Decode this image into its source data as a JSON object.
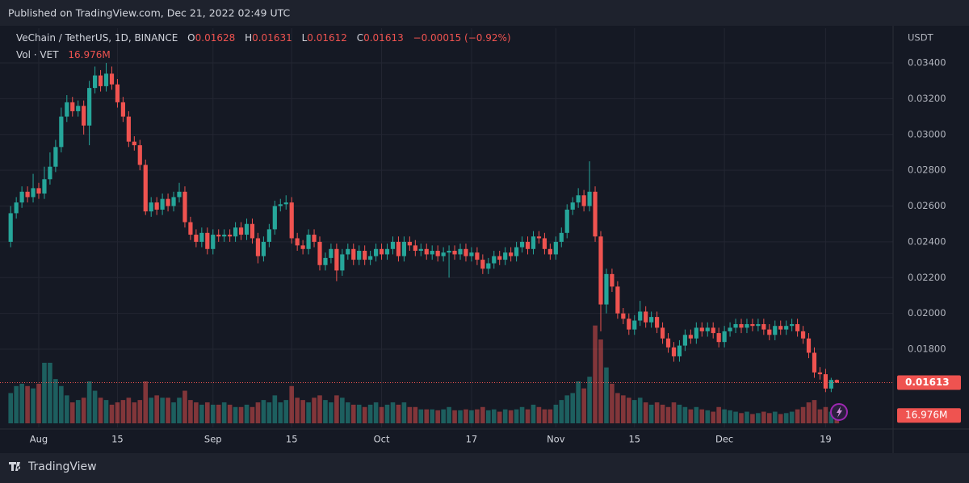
{
  "published": "Published on TradingView.com, Dec 21, 2022 02:49 UTC",
  "footer_brand": "TradingView",
  "chart_data": {
    "type": "candlestick",
    "symbol": "VeChain / TetherUS, 1D, BINANCE",
    "ohlc_keys": [
      "O",
      "H",
      "L",
      "C"
    ],
    "change_label": "−0.00015 (−0.92%)",
    "volume_title": "Vol · VET",
    "y_unit": "USDT",
    "up_color": "#26a69a",
    "down_color": "#ef5350",
    "grid": true,
    "ylim": [
      0.01363,
      0.03594
    ],
    "yticks": [
      {
        "value": 0.018,
        "label": "0.01800"
      },
      {
        "value": 0.02,
        "label": "0.02000"
      },
      {
        "value": 0.022,
        "label": "0.02200"
      },
      {
        "value": 0.024,
        "label": "0.02400"
      },
      {
        "value": 0.026,
        "label": "0.02600"
      },
      {
        "value": 0.028,
        "label": "0.02800"
      },
      {
        "value": 0.03,
        "label": "0.03000"
      },
      {
        "value": 0.032,
        "label": "0.03200"
      },
      {
        "value": 0.034,
        "label": "0.03400"
      }
    ],
    "volume_lim": [
      0,
      225
    ],
    "categories": [
      null,
      null,
      null,
      null,
      null,
      "Aug",
      null,
      null,
      null,
      null,
      null,
      null,
      null,
      null,
      null,
      null,
      null,
      null,
      null,
      "15",
      null,
      null,
      null,
      null,
      null,
      null,
      null,
      null,
      null,
      null,
      null,
      null,
      null,
      null,
      null,
      null,
      "Sep",
      null,
      null,
      null,
      null,
      null,
      null,
      null,
      null,
      null,
      null,
      null,
      null,
      null,
      "15",
      null,
      null,
      null,
      null,
      null,
      null,
      null,
      null,
      null,
      null,
      null,
      null,
      null,
      null,
      null,
      "Oct",
      null,
      null,
      null,
      null,
      null,
      null,
      null,
      null,
      null,
      null,
      null,
      null,
      null,
      null,
      null,
      "17",
      null,
      null,
      null,
      null,
      null,
      null,
      null,
      null,
      null,
      null,
      null,
      null,
      null,
      null,
      "Nov",
      null,
      null,
      null,
      null,
      null,
      null,
      null,
      null,
      null,
      null,
      null,
      null,
      null,
      "15",
      null,
      null,
      null,
      null,
      null,
      null,
      null,
      null,
      null,
      null,
      null,
      null,
      null,
      null,
      null,
      "Dec",
      null,
      null,
      null,
      null,
      null,
      null,
      null,
      null,
      null,
      null,
      null,
      null,
      null,
      null,
      null,
      null,
      null,
      "19",
      null,
      null
    ],
    "open": [
      0.024,
      0.0256,
      0.0262,
      0.0268,
      0.0265,
      0.027,
      0.0267,
      0.0275,
      0.0282,
      0.0293,
      0.031,
      0.0318,
      0.0313,
      0.0316,
      0.0305,
      0.0326,
      0.0333,
      0.0327,
      0.0334,
      0.0328,
      0.0318,
      0.031,
      0.0296,
      0.0294,
      0.0283,
      0.0257,
      0.0262,
      0.0258,
      0.0264,
      0.026,
      0.0265,
      0.0268,
      0.0251,
      0.0244,
      0.024,
      0.0245,
      0.0236,
      0.0244,
      0.0243,
      0.0244,
      0.0243,
      0.0248,
      0.0244,
      0.025,
      0.0242,
      0.0232,
      0.024,
      0.0247,
      0.026,
      0.0261,
      0.0262,
      0.0242,
      0.0238,
      0.0236,
      0.0244,
      0.024,
      0.0227,
      0.0231,
      0.0236,
      0.0224,
      0.0233,
      0.0236,
      0.023,
      0.0235,
      0.023,
      0.0232,
      0.0236,
      0.0233,
      0.0236,
      0.024,
      0.0232,
      0.024,
      0.0238,
      0.0235,
      0.0236,
      0.0233,
      0.0235,
      0.0232,
      0.0234,
      0.0235,
      0.0233,
      0.0236,
      0.0232,
      0.0234,
      0.023,
      0.0225,
      0.0228,
      0.0232,
      0.023,
      0.0234,
      0.0232,
      0.0237,
      0.024,
      0.0236,
      0.0243,
      0.0242,
      0.0236,
      0.0233,
      0.024,
      0.0245,
      0.0258,
      0.0262,
      0.0266,
      0.026,
      0.0268,
      0.0243,
      0.0205,
      0.0222,
      0.0215,
      0.02,
      0.0197,
      0.0191,
      0.0196,
      0.0201,
      0.0195,
      0.0198,
      0.0192,
      0.0186,
      0.0181,
      0.0176,
      0.0182,
      0.0188,
      0.0186,
      0.0192,
      0.019,
      0.0192,
      0.0189,
      0.0184,
      0.019,
      0.0192,
      0.0194,
      0.0192,
      0.0194,
      0.0193,
      0.0194,
      0.0191,
      0.0188,
      0.0193,
      0.0191,
      0.0193,
      0.0194,
      0.019,
      0.0186,
      0.0178,
      0.0167,
      0.0166,
      0.0158,
      0.01628
    ],
    "high": [
      0.026,
      0.0265,
      0.0271,
      0.0271,
      0.0278,
      0.0273,
      0.0282,
      0.029,
      0.0297,
      0.0315,
      0.0322,
      0.0321,
      0.0319,
      0.0319,
      0.033,
      0.0338,
      0.0336,
      0.034,
      0.0338,
      0.0331,
      0.0321,
      0.0313,
      0.0299,
      0.0297,
      0.0286,
      0.0265,
      0.0265,
      0.0267,
      0.0267,
      0.0268,
      0.0273,
      0.0271,
      0.0254,
      0.0247,
      0.0248,
      0.0248,
      0.0247,
      0.0247,
      0.0247,
      0.0247,
      0.0251,
      0.0251,
      0.0253,
      0.0253,
      0.0245,
      0.0243,
      0.025,
      0.0263,
      0.0264,
      0.0266,
      0.0265,
      0.0245,
      0.0241,
      0.0247,
      0.0247,
      0.0243,
      0.0234,
      0.0239,
      0.0239,
      0.0236,
      0.0239,
      0.0239,
      0.0238,
      0.0238,
      0.0235,
      0.0239,
      0.0239,
      0.0239,
      0.0243,
      0.0243,
      0.0243,
      0.0243,
      0.0241,
      0.0239,
      0.0239,
      0.0238,
      0.0238,
      0.0237,
      0.0238,
      0.0238,
      0.0239,
      0.0239,
      0.0237,
      0.0237,
      0.0233,
      0.0231,
      0.0235,
      0.0235,
      0.0237,
      0.0237,
      0.024,
      0.0243,
      0.0243,
      0.0246,
      0.0246,
      0.0245,
      0.0239,
      0.0243,
      0.0248,
      0.0261,
      0.0265,
      0.027,
      0.0269,
      0.0285,
      0.0271,
      0.0246,
      0.0225,
      0.0225,
      0.0218,
      0.0203,
      0.02,
      0.0199,
      0.0207,
      0.0204,
      0.0201,
      0.0201,
      0.0195,
      0.0189,
      0.0184,
      0.0185,
      0.0191,
      0.0191,
      0.0195,
      0.0195,
      0.0195,
      0.0195,
      0.0192,
      0.0193,
      0.0195,
      0.0197,
      0.0197,
      0.0197,
      0.0197,
      0.0197,
      0.0197,
      0.0194,
      0.0196,
      0.0196,
      0.0196,
      0.0197,
      0.0197,
      0.0193,
      0.0189,
      0.0181,
      0.017,
      0.0169,
      0.0164,
      0.01631
    ],
    "low": [
      0.0237,
      0.0253,
      0.0259,
      0.0262,
      0.0262,
      0.0264,
      0.0264,
      0.0272,
      0.0279,
      0.029,
      0.0307,
      0.031,
      0.031,
      0.03,
      0.0294,
      0.0323,
      0.0324,
      0.0324,
      0.0325,
      0.0315,
      0.0307,
      0.0293,
      0.0291,
      0.028,
      0.0255,
      0.0254,
      0.0255,
      0.0255,
      0.0257,
      0.0257,
      0.0262,
      0.0248,
      0.0241,
      0.0237,
      0.0237,
      0.0233,
      0.0233,
      0.024,
      0.024,
      0.024,
      0.024,
      0.0241,
      0.0241,
      0.0239,
      0.0228,
      0.0229,
      0.0237,
      0.0244,
      0.0257,
      0.0258,
      0.0239,
      0.0235,
      0.0233,
      0.0233,
      0.0237,
      0.0224,
      0.0224,
      0.0228,
      0.0218,
      0.0221,
      0.023,
      0.0227,
      0.0227,
      0.0227,
      0.0227,
      0.0229,
      0.023,
      0.023,
      0.0233,
      0.0229,
      0.0229,
      0.0235,
      0.0232,
      0.0232,
      0.023,
      0.023,
      0.0229,
      0.0229,
      0.022,
      0.023,
      0.023,
      0.0229,
      0.0229,
      0.0227,
      0.0222,
      0.0222,
      0.0225,
      0.0227,
      0.0227,
      0.0229,
      0.0229,
      0.0234,
      0.0233,
      0.0233,
      0.0239,
      0.0233,
      0.023,
      0.023,
      0.0237,
      0.0242,
      0.0255,
      0.0259,
      0.0257,
      0.0257,
      0.024,
      0.019,
      0.02,
      0.0212,
      0.0197,
      0.0194,
      0.0188,
      0.0188,
      0.0193,
      0.0192,
      0.0192,
      0.0189,
      0.0183,
      0.0178,
      0.0173,
      0.0173,
      0.0179,
      0.0183,
      0.0183,
      0.0187,
      0.0187,
      0.0186,
      0.0181,
      0.0181,
      0.0187,
      0.0189,
      0.0189,
      0.0189,
      0.019,
      0.019,
      0.0188,
      0.0185,
      0.0185,
      0.0188,
      0.0188,
      0.019,
      0.0187,
      0.0183,
      0.0175,
      0.0164,
      0.0163,
      0.0156,
      0.0156,
      0.01612
    ],
    "close": [
      0.0256,
      0.0262,
      0.0268,
      0.0265,
      0.027,
      0.0267,
      0.0275,
      0.0282,
      0.0293,
      0.031,
      0.0318,
      0.0313,
      0.0316,
      0.0305,
      0.0326,
      0.0333,
      0.0327,
      0.0334,
      0.0328,
      0.0318,
      0.031,
      0.0296,
      0.0294,
      0.0283,
      0.0257,
      0.0262,
      0.0258,
      0.0264,
      0.026,
      0.0265,
      0.0268,
      0.0251,
      0.0244,
      0.024,
      0.0245,
      0.0236,
      0.0244,
      0.0243,
      0.0244,
      0.0243,
      0.0248,
      0.0244,
      0.025,
      0.0242,
      0.0232,
      0.024,
      0.0247,
      0.026,
      0.0261,
      0.0262,
      0.0242,
      0.0238,
      0.0236,
      0.0244,
      0.024,
      0.0227,
      0.0231,
      0.0236,
      0.0224,
      0.0233,
      0.0236,
      0.023,
      0.0235,
      0.023,
      0.0232,
      0.0236,
      0.0233,
      0.0236,
      0.024,
      0.0232,
      0.024,
      0.0238,
      0.0235,
      0.0236,
      0.0233,
      0.0235,
      0.0232,
      0.0234,
      0.0235,
      0.0233,
      0.0236,
      0.0232,
      0.0234,
      0.023,
      0.0225,
      0.0228,
      0.0232,
      0.023,
      0.0234,
      0.0232,
      0.0237,
      0.024,
      0.0236,
      0.0243,
      0.0242,
      0.0236,
      0.0233,
      0.024,
      0.0245,
      0.0258,
      0.0262,
      0.0266,
      0.026,
      0.0268,
      0.0243,
      0.0205,
      0.0222,
      0.0215,
      0.02,
      0.0197,
      0.0191,
      0.0196,
      0.0201,
      0.0195,
      0.0198,
      0.0192,
      0.0186,
      0.0181,
      0.0176,
      0.0182,
      0.0188,
      0.0186,
      0.0192,
      0.019,
      0.0192,
      0.0189,
      0.0184,
      0.019,
      0.0192,
      0.0194,
      0.0192,
      0.0194,
      0.0193,
      0.0194,
      0.0191,
      0.0188,
      0.0193,
      0.0191,
      0.0193,
      0.0194,
      0.019,
      0.0186,
      0.0178,
      0.0167,
      0.0166,
      0.0158,
      0.01628,
      0.01613
    ],
    "volume": [
      65,
      80,
      85,
      80,
      75,
      85,
      130,
      130,
      95,
      80,
      60,
      45,
      50,
      55,
      90,
      70,
      55,
      50,
      40,
      45,
      50,
      55,
      45,
      50,
      90,
      55,
      60,
      55,
      55,
      45,
      55,
      70,
      50,
      45,
      40,
      45,
      40,
      40,
      45,
      40,
      35,
      35,
      40,
      35,
      45,
      50,
      45,
      60,
      45,
      50,
      80,
      55,
      50,
      45,
      55,
      60,
      50,
      45,
      60,
      55,
      45,
      40,
      40,
      35,
      40,
      45,
      35,
      40,
      45,
      40,
      45,
      35,
      35,
      30,
      30,
      30,
      28,
      30,
      35,
      28,
      28,
      30,
      28,
      30,
      35,
      28,
      30,
      25,
      30,
      28,
      30,
      35,
      30,
      40,
      35,
      30,
      30,
      40,
      50,
      60,
      65,
      90,
      75,
      100,
      210,
      180,
      120,
      85,
      65,
      60,
      55,
      50,
      55,
      45,
      40,
      45,
      40,
      35,
      45,
      40,
      35,
      30,
      35,
      30,
      28,
      25,
      35,
      30,
      28,
      25,
      22,
      25,
      20,
      22,
      25,
      22,
      25,
      20,
      22,
      25,
      30,
      35,
      45,
      50,
      30,
      35,
      25,
      16.976
    ],
    "volume_value_labels": [
      null,
      null,
      null,
      null,
      null,
      null,
      null,
      null,
      null,
      null,
      null,
      null,
      null,
      null,
      null,
      null,
      null,
      null,
      null,
      null,
      null,
      null,
      null,
      null,
      null,
      null,
      null,
      null,
      null,
      null,
      null,
      null,
      null,
      null,
      null,
      null,
      null,
      null,
      null,
      null,
      null,
      null,
      null,
      null,
      null,
      null,
      null,
      null,
      null,
      null,
      null,
      null,
      null,
      null,
      null,
      null,
      null,
      null,
      null,
      null,
      null,
      null,
      null,
      null,
      null,
      null,
      null,
      null,
      null,
      null,
      null,
      null,
      null,
      null,
      null,
      null,
      null,
      null,
      null,
      null,
      null,
      null,
      null,
      null,
      null,
      null,
      null,
      null,
      null,
      null,
      null,
      null,
      null,
      null,
      null,
      null,
      null,
      null,
      null,
      null,
      null,
      null,
      null,
      null,
      null,
      null,
      null,
      null,
      null,
      null,
      null,
      null,
      null,
      null,
      null,
      null,
      null,
      null,
      null,
      null,
      null,
      null,
      null,
      null,
      null,
      null,
      null,
      null,
      null,
      null,
      null,
      null,
      null,
      null,
      null,
      null,
      null,
      null,
      null,
      null,
      null,
      null,
      null,
      null,
      null,
      null,
      null,
      "16.976M"
    ]
  }
}
